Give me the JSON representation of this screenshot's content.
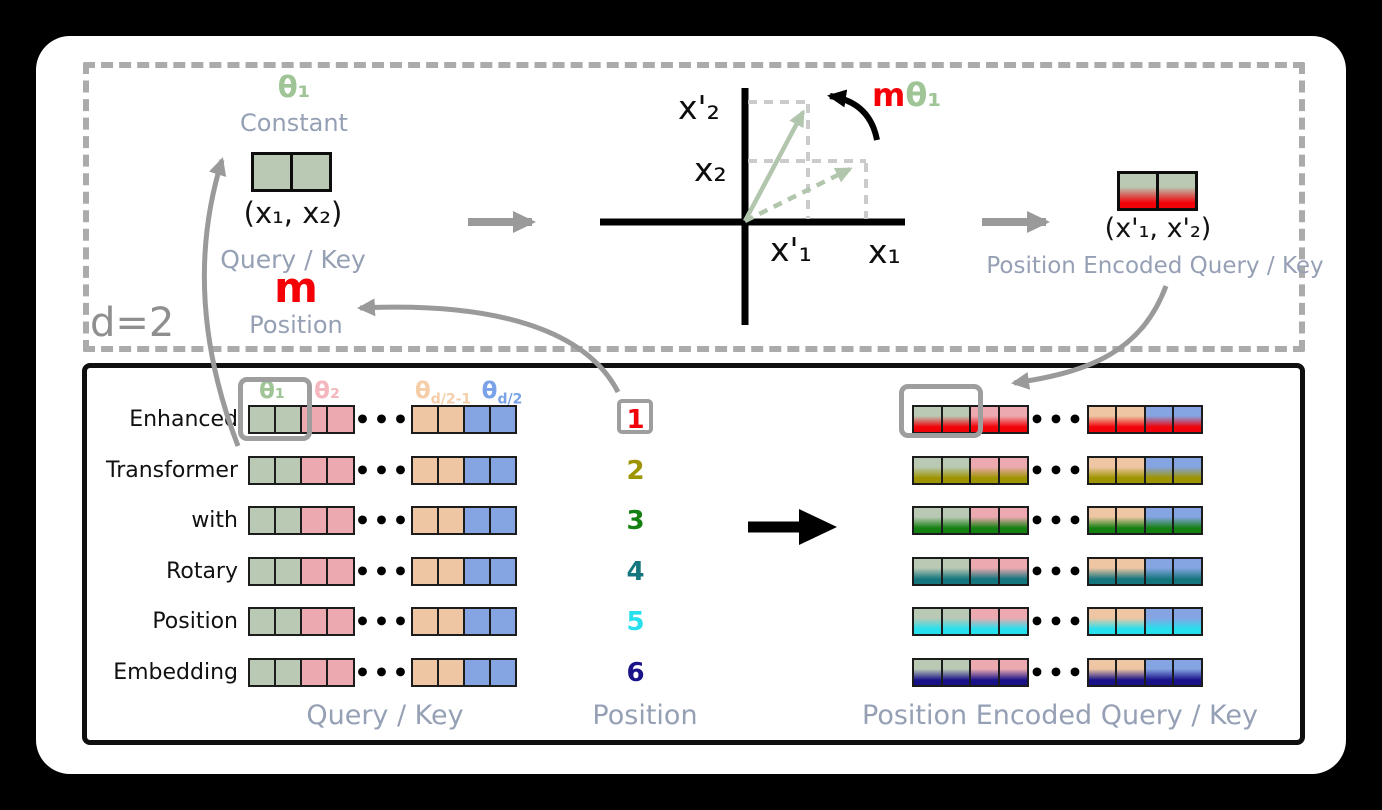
{
  "top_panel": {
    "d_label": "d=2",
    "theta_label": "θ₁",
    "constant_label": "Constant",
    "query_key_caption": "(x₁, x₂)",
    "query_key_label": "Query / Key",
    "m_label": "m",
    "m_sub_label": "Position",
    "plot": {
      "x2_rotated": "x'₂",
      "x2": "x₂",
      "x1_rotated": "x'₁",
      "x1": "x₁",
      "rotation_m": "m",
      "rotation_theta": "θ₁"
    },
    "encoded_caption": "(x'₁, x'₂)",
    "encoded_label": "Position Encoded Query / Key"
  },
  "bottom_panel": {
    "headers": [
      {
        "base": "θ₁",
        "sub": "",
        "color": "#9fc596"
      },
      {
        "base": "θ₂",
        "sub": "",
        "color": "#f3b7bd"
      },
      {
        "base": "θ",
        "sub": "d/2-1",
        "color": "#f5cda9"
      },
      {
        "base": "θ",
        "sub": "d/2",
        "color": "#79a2e8"
      }
    ],
    "rows": [
      "Enhanced",
      "Transformer",
      "with",
      "Rotary",
      "Position",
      "Embedding"
    ],
    "positions": [
      {
        "label": "1",
        "color": "#f10108"
      },
      {
        "label": "2",
        "color": "#9d9400"
      },
      {
        "label": "3",
        "color": "#158012"
      },
      {
        "label": "4",
        "color": "#15767e"
      },
      {
        "label": "5",
        "color": "#27e0ee"
      },
      {
        "label": "6",
        "color": "#191289"
      }
    ],
    "dots": "•••",
    "cell_colors": {
      "green": "#b9c9b4",
      "pink": "#ecaab0",
      "tan": "#eec6a3",
      "blue": "#84a4e2"
    },
    "cell_pattern": [
      "green",
      "green",
      "pink",
      "pink",
      "tan",
      "tan",
      "blue",
      "blue"
    ],
    "captions": {
      "left": "Query / Key",
      "mid": "Position",
      "right": "Position Encoded Query / Key"
    }
  },
  "palette": {
    "label_gray_blue": "#96a0b5",
    "arrow_gray": "#9a9a9a",
    "highlight_gray": "#9e9e9e",
    "red": "#f50006",
    "sage_vector": "#b2c6ae",
    "black": "#0d0d0d"
  }
}
